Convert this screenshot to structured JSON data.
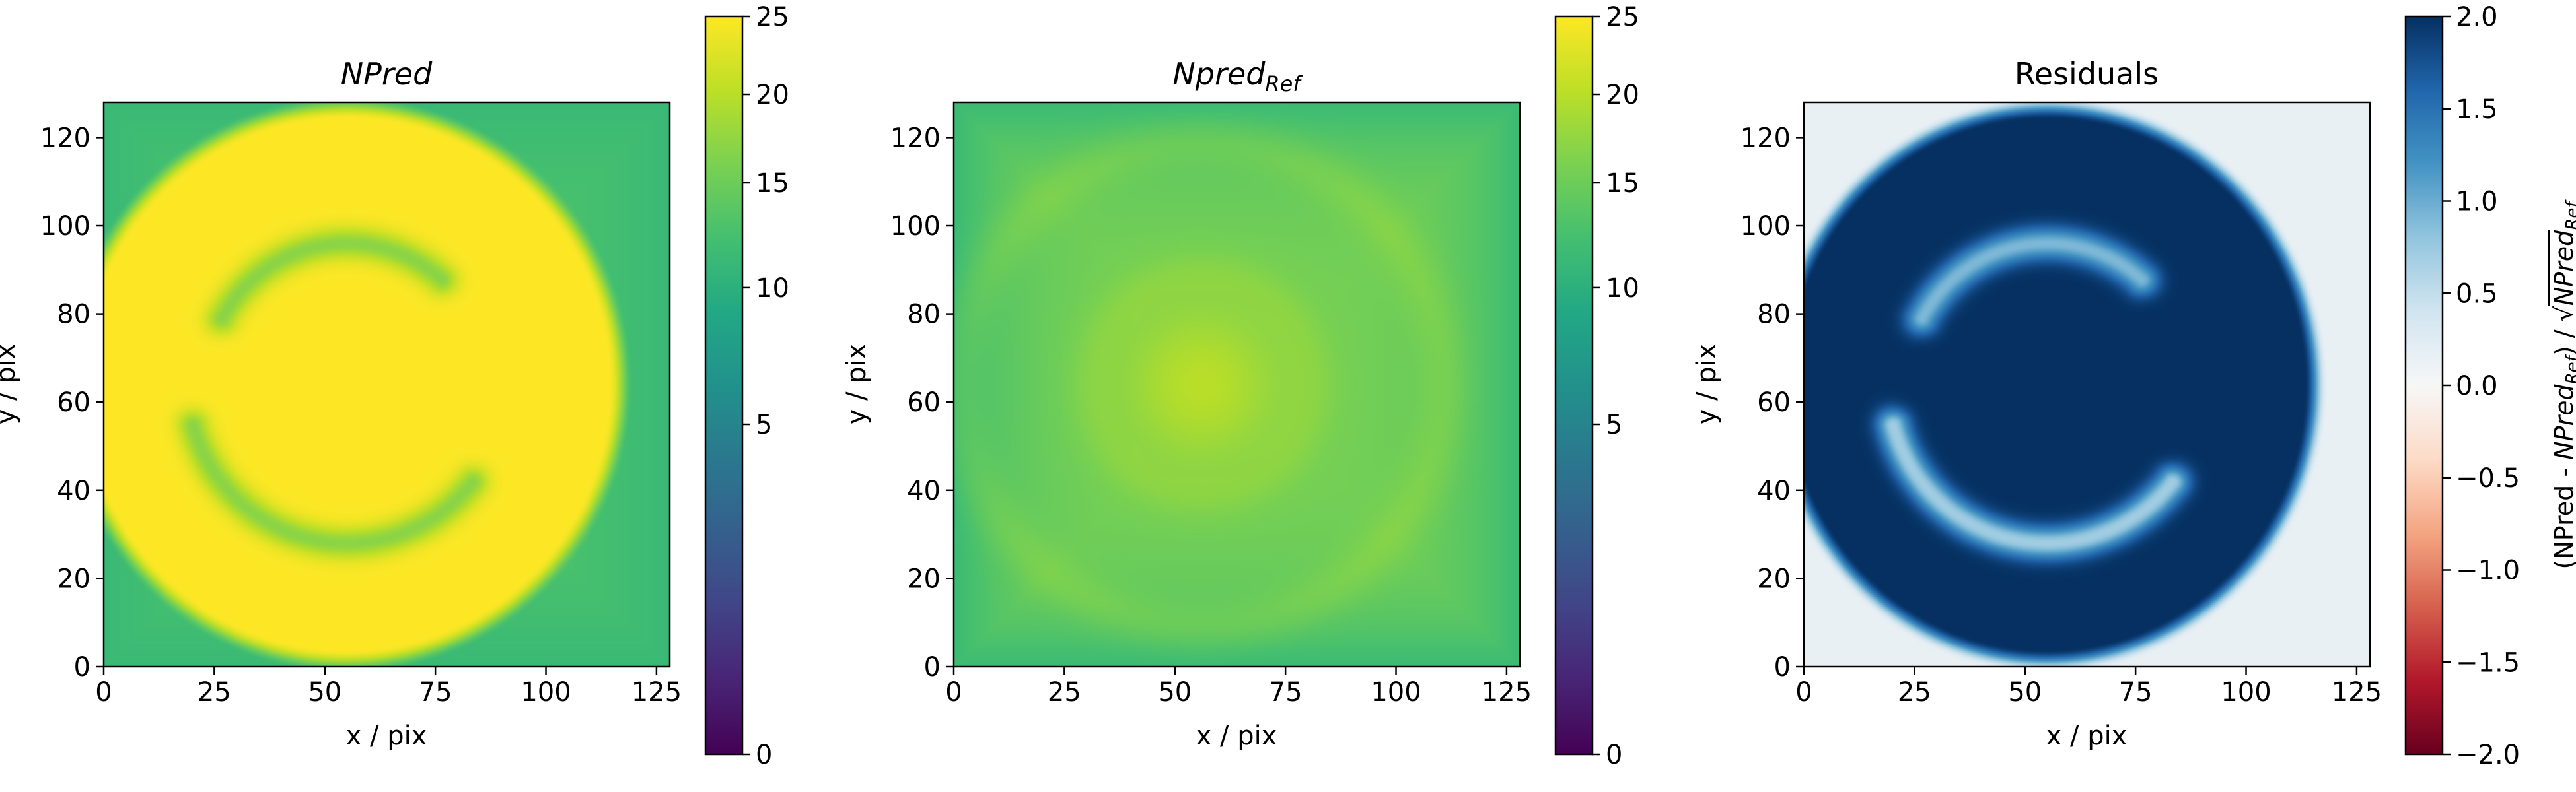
{
  "chart_data": [
    {
      "type": "heatmap",
      "panel": "npred",
      "title": "NPred",
      "title_style": "italic",
      "xlabel": "x / pix",
      "ylabel": "y / pix",
      "xlim": [
        0,
        128
      ],
      "ylim": [
        0,
        128
      ],
      "xticks": [
        0,
        25,
        50,
        75,
        100,
        125
      ],
      "yticks": [
        0,
        20,
        40,
        60,
        80,
        100,
        120
      ],
      "colormap": "viridis",
      "colorbar": {
        "range": [
          0,
          25
        ],
        "scale": "sqrt",
        "ticks": [
          0,
          5,
          10,
          15,
          20,
          25
        ],
        "label": ""
      },
      "features": {
        "disk": {
          "center": [
            55,
            64
          ],
          "radius_x": 61,
          "radius_y": 62,
          "value": 25
        },
        "background_value": 13,
        "corner_value": 10,
        "arcs": [
          {
            "center": [
              55,
              64
            ],
            "radius": 32,
            "from_deg": 48,
            "to_deg": 152,
            "value": 17
          },
          {
            "center": [
              55,
              64
            ],
            "radius": 36,
            "from_deg": 195,
            "to_deg": 322,
            "value": 17
          }
        ]
      }
    },
    {
      "type": "heatmap",
      "panel": "npred_ref",
      "title": "Npred",
      "title_subscript": "Ref",
      "title_style": "italic",
      "xlabel": "x / pix",
      "ylabel": "y / pix",
      "xlim": [
        0,
        128
      ],
      "ylim": [
        0,
        128
      ],
      "xticks": [
        0,
        25,
        50,
        75,
        100,
        125
      ],
      "yticks": [
        0,
        20,
        40,
        60,
        80,
        100,
        120
      ],
      "colormap": "viridis",
      "colorbar": {
        "range": [
          0,
          25
        ],
        "scale": "sqrt",
        "ticks": [
          0,
          5,
          10,
          15,
          20,
          25
        ],
        "label": ""
      },
      "features": {
        "background_value": 15.5,
        "center_value": 20,
        "center": [
          56,
          64
        ],
        "ring_radius": 55,
        "ring_value": 17,
        "corner_value": 11
      }
    },
    {
      "type": "heatmap",
      "panel": "residuals",
      "title": "Residuals",
      "title_style": "normal",
      "xlabel": "x / pix",
      "ylabel": "y / pix",
      "xlim": [
        0,
        128
      ],
      "ylim": [
        0,
        128
      ],
      "xticks": [
        0,
        25,
        50,
        75,
        100,
        125
      ],
      "yticks": [
        0,
        20,
        40,
        60,
        80,
        100,
        120
      ],
      "colormap": "RdBu",
      "colorbar": {
        "range": [
          -2,
          2
        ],
        "scale": "linear",
        "ticks": [
          2.0,
          1.5,
          1.0,
          0.5,
          0.0,
          -0.5,
          -1.0,
          -1.5,
          -2.0
        ],
        "tick_labels": [
          "2.0",
          "1.5",
          "1.0",
          "0.5",
          "0.0",
          "−0.5",
          "−1.0",
          "−1.5",
          "−2.0"
        ],
        "label_parts": [
          "(NPred - ",
          "NPred",
          "Ref",
          ") / √",
          "NPred",
          "Ref"
        ]
      },
      "features": {
        "disk": {
          "center": [
            55,
            64
          ],
          "radius_x": 60,
          "radius_y": 62,
          "value": 2.0
        },
        "background_value": 0.15,
        "arcs": [
          {
            "center": [
              55,
              64
            ],
            "radius": 32,
            "from_deg": 48,
            "to_deg": 152,
            "value": 0.9
          },
          {
            "center": [
              55,
              64
            ],
            "radius": 36,
            "from_deg": 195,
            "to_deg": 322,
            "value": 0.7
          }
        ]
      }
    }
  ]
}
